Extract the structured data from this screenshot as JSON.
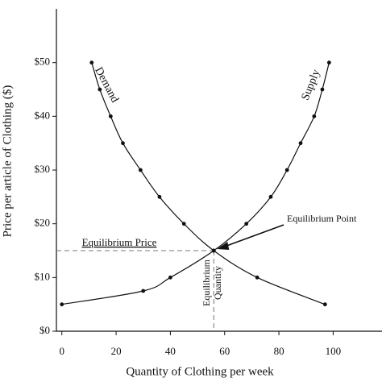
{
  "chart_data": {
    "type": "line",
    "ylabel": "Price per article of Clothing ($)",
    "xlabel": "Quantity of Clothing per week",
    "xlim": [
      -2,
      118
    ],
    "ylim": [
      0,
      60
    ],
    "xticks": [
      0,
      20,
      40,
      60,
      80,
      100
    ],
    "yticks": [
      {
        "value": 0,
        "label": "$0"
      },
      {
        "value": 10,
        "label": "$10"
      },
      {
        "value": 20,
        "label": "$20"
      },
      {
        "value": 30,
        "label": "$30"
      },
      {
        "value": 40,
        "label": "$40"
      },
      {
        "value": 50,
        "label": "$50"
      }
    ],
    "series": [
      {
        "name": "Demand",
        "color": "#111111",
        "x": [
          11,
          14,
          18,
          22.5,
          29,
          36,
          45,
          56,
          72,
          97
        ],
        "values": [
          50,
          45,
          40,
          35,
          30,
          25,
          20,
          15,
          10,
          5
        ]
      },
      {
        "name": "Supply",
        "color": "#111111",
        "x": [
          0,
          30,
          40,
          56,
          68,
          77,
          83,
          88,
          93,
          96,
          98.5
        ],
        "values": [
          5,
          7.5,
          10,
          15,
          20,
          25,
          30,
          35,
          40,
          45,
          50
        ]
      }
    ],
    "equilibrium": {
      "x": 56,
      "y": 15
    },
    "annotations": {
      "point": "Equilibrium Point",
      "price": "Equilibrium Price",
      "quantity": [
        "Equilibrium",
        "Quantity"
      ]
    }
  }
}
